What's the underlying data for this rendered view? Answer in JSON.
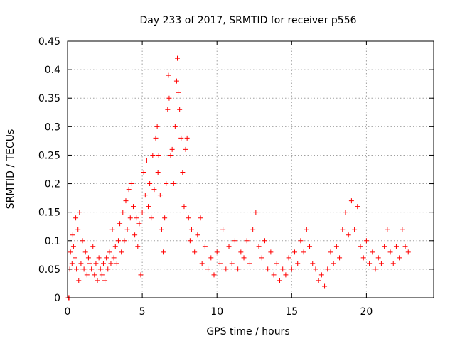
{
  "chart_data": {
    "type": "scatter",
    "title": "Day 233 of 2017, SRMTID for receiver p556",
    "xlabel": "GPS time / hours",
    "ylabel": "SRMTID / TECUs",
    "xlim": [
      0,
      24.5
    ],
    "ylim": [
      0,
      0.45
    ],
    "xticks": [
      0,
      5,
      10,
      15,
      20
    ],
    "xtick_labels": [
      "0",
      "5",
      "10",
      "15",
      "20"
    ],
    "yticks": [
      0,
      0.05,
      0.1,
      0.15,
      0.2,
      0.25,
      0.3,
      0.35,
      0.4,
      0.45
    ],
    "ytick_labels": [
      "0",
      "0.05",
      "0.1",
      "0.15",
      "0.2",
      "0.25",
      "0.3",
      "0.35",
      "0.4",
      "0.45"
    ],
    "grid": true,
    "marker": "plus",
    "series_color": "#ff0000",
    "series": [
      {
        "name": "SRMTID",
        "points": [
          [
            0.05,
            0.0
          ],
          [
            0.1,
            0.0
          ],
          [
            0.15,
            0.05
          ],
          [
            0.2,
            0.08
          ],
          [
            0.3,
            0.06
          ],
          [
            0.35,
            0.11
          ],
          [
            0.4,
            0.09
          ],
          [
            0.5,
            0.07
          ],
          [
            0.55,
            0.14
          ],
          [
            0.6,
            0.05
          ],
          [
            0.7,
            0.12
          ],
          [
            0.75,
            0.03
          ],
          [
            0.8,
            0.15
          ],
          [
            0.9,
            0.06
          ],
          [
            1.0,
            0.1
          ],
          [
            1.1,
            0.05
          ],
          [
            1.2,
            0.08
          ],
          [
            1.3,
            0.04
          ],
          [
            1.4,
            0.07
          ],
          [
            1.5,
            0.06
          ],
          [
            1.6,
            0.05
          ],
          [
            1.7,
            0.09
          ],
          [
            1.8,
            0.04
          ],
          [
            1.9,
            0.06
          ],
          [
            2.0,
            0.03
          ],
          [
            2.1,
            0.07
          ],
          [
            2.2,
            0.05
          ],
          [
            2.3,
            0.04
          ],
          [
            2.4,
            0.06
          ],
          [
            2.5,
            0.03
          ],
          [
            2.6,
            0.07
          ],
          [
            2.7,
            0.05
          ],
          [
            2.8,
            0.08
          ],
          [
            2.9,
            0.06
          ],
          [
            3.0,
            0.12
          ],
          [
            3.1,
            0.07
          ],
          [
            3.2,
            0.09
          ],
          [
            3.3,
            0.06
          ],
          [
            3.4,
            0.1
          ],
          [
            3.5,
            0.13
          ],
          [
            3.6,
            0.08
          ],
          [
            3.7,
            0.15
          ],
          [
            3.8,
            0.1
          ],
          [
            3.9,
            0.17
          ],
          [
            4.0,
            0.12
          ],
          [
            4.1,
            0.19
          ],
          [
            4.2,
            0.14
          ],
          [
            4.3,
            0.2
          ],
          [
            4.4,
            0.16
          ],
          [
            4.5,
            0.11
          ],
          [
            4.6,
            0.14
          ],
          [
            4.7,
            0.09
          ],
          [
            4.8,
            0.13
          ],
          [
            4.9,
            0.04
          ],
          [
            5.0,
            0.15
          ],
          [
            5.1,
            0.22
          ],
          [
            5.2,
            0.18
          ],
          [
            5.3,
            0.24
          ],
          [
            5.4,
            0.16
          ],
          [
            5.5,
            0.2
          ],
          [
            5.6,
            0.14
          ],
          [
            5.7,
            0.25
          ],
          [
            5.8,
            0.19
          ],
          [
            5.9,
            0.28
          ],
          [
            6.0,
            0.3
          ],
          [
            6.05,
            0.22
          ],
          [
            6.1,
            0.25
          ],
          [
            6.2,
            0.18
          ],
          [
            6.3,
            0.12
          ],
          [
            6.4,
            0.08
          ],
          [
            6.5,
            0.14
          ],
          [
            6.6,
            0.2
          ],
          [
            6.7,
            0.33
          ],
          [
            6.75,
            0.39
          ],
          [
            6.8,
            0.35
          ],
          [
            6.9,
            0.25
          ],
          [
            7.0,
            0.26
          ],
          [
            7.1,
            0.2
          ],
          [
            7.2,
            0.3
          ],
          [
            7.3,
            0.38
          ],
          [
            7.35,
            0.42
          ],
          [
            7.4,
            0.36
          ],
          [
            7.5,
            0.33
          ],
          [
            7.6,
            0.28
          ],
          [
            7.7,
            0.22
          ],
          [
            7.8,
            0.16
          ],
          [
            7.9,
            0.26
          ],
          [
            8.0,
            0.28
          ],
          [
            8.1,
            0.14
          ],
          [
            8.2,
            0.1
          ],
          [
            8.3,
            0.12
          ],
          [
            8.5,
            0.08
          ],
          [
            8.7,
            0.11
          ],
          [
            8.9,
            0.14
          ],
          [
            9.0,
            0.06
          ],
          [
            9.2,
            0.09
          ],
          [
            9.4,
            0.05
          ],
          [
            9.6,
            0.07
          ],
          [
            9.8,
            0.04
          ],
          [
            10.0,
            0.08
          ],
          [
            10.2,
            0.06
          ],
          [
            10.4,
            0.12
          ],
          [
            10.6,
            0.05
          ],
          [
            10.8,
            0.09
          ],
          [
            11.0,
            0.06
          ],
          [
            11.2,
            0.1
          ],
          [
            11.4,
            0.05
          ],
          [
            11.6,
            0.08
          ],
          [
            11.8,
            0.07
          ],
          [
            12.0,
            0.1
          ],
          [
            12.2,
            0.06
          ],
          [
            12.4,
            0.12
          ],
          [
            12.6,
            0.15
          ],
          [
            12.8,
            0.09
          ],
          [
            13.0,
            0.07
          ],
          [
            13.2,
            0.1
          ],
          [
            13.4,
            0.05
          ],
          [
            13.6,
            0.08
          ],
          [
            13.8,
            0.04
          ],
          [
            14.0,
            0.06
          ],
          [
            14.2,
            0.03
          ],
          [
            14.4,
            0.05
          ],
          [
            14.6,
            0.04
          ],
          [
            14.8,
            0.07
          ],
          [
            15.0,
            0.05
          ],
          [
            15.2,
            0.08
          ],
          [
            15.4,
            0.06
          ],
          [
            15.6,
            0.1
          ],
          [
            15.8,
            0.08
          ],
          [
            16.0,
            0.12
          ],
          [
            16.2,
            0.09
          ],
          [
            16.4,
            0.06
          ],
          [
            16.6,
            0.05
          ],
          [
            16.8,
            0.03
          ],
          [
            17.0,
            0.04
          ],
          [
            17.2,
            0.02
          ],
          [
            17.4,
            0.05
          ],
          [
            17.6,
            0.08
          ],
          [
            17.8,
            0.06
          ],
          [
            18.0,
            0.09
          ],
          [
            18.2,
            0.07
          ],
          [
            18.4,
            0.12
          ],
          [
            18.6,
            0.15
          ],
          [
            18.8,
            0.11
          ],
          [
            19.0,
            0.17
          ],
          [
            19.2,
            0.12
          ],
          [
            19.4,
            0.16
          ],
          [
            19.6,
            0.09
          ],
          [
            19.8,
            0.07
          ],
          [
            20.0,
            0.1
          ],
          [
            20.2,
            0.06
          ],
          [
            20.4,
            0.08
          ],
          [
            20.6,
            0.05
          ],
          [
            20.8,
            0.07
          ],
          [
            21.0,
            0.06
          ],
          [
            21.2,
            0.09
          ],
          [
            21.4,
            0.12
          ],
          [
            21.6,
            0.08
          ],
          [
            21.8,
            0.06
          ],
          [
            22.0,
            0.09
          ],
          [
            22.2,
            0.07
          ],
          [
            22.4,
            0.12
          ],
          [
            22.6,
            0.09
          ],
          [
            22.8,
            0.08
          ]
        ]
      }
    ]
  }
}
